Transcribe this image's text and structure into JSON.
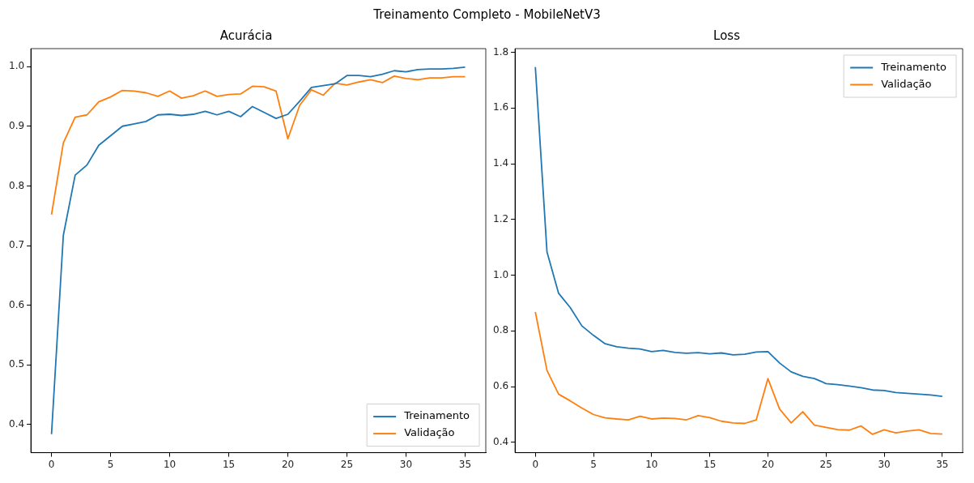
{
  "chart_data": [
    {
      "type": "line",
      "title": "Acurácia",
      "annotations": [
        "Treinamento Completo - MobileNetV3"
      ],
      "x": [
        0,
        1,
        2,
        3,
        4,
        5,
        6,
        7,
        8,
        9,
        10,
        11,
        12,
        13,
        14,
        15,
        16,
        17,
        18,
        19,
        20,
        21,
        22,
        23,
        24,
        25,
        26,
        27,
        28,
        29,
        30,
        31,
        32,
        33,
        34,
        35
      ],
      "xlim": [
        -1.75,
        36.75
      ],
      "xticks": [
        0,
        5,
        10,
        15,
        20,
        25,
        30,
        35
      ],
      "ylim": [
        0.353,
        1.03
      ],
      "yticks": [
        {
          "value": 0.4,
          "label": "0.4"
        },
        {
          "value": 0.5,
          "label": "0.5"
        },
        {
          "value": 0.6,
          "label": "0.6"
        },
        {
          "value": 0.7,
          "label": "0.7"
        },
        {
          "value": 0.8,
          "label": "0.8"
        },
        {
          "value": 0.9,
          "label": "0.9"
        },
        {
          "value": 1.0,
          "label": "1.0"
        }
      ],
      "grid": false,
      "legend": "bottom right",
      "series": [
        {
          "name": "Treinamento",
          "color": "#1f77b4",
          "values": [
            0.384,
            0.717,
            0.818,
            0.835,
            0.868,
            0.884,
            0.9,
            0.904,
            0.908,
            0.919,
            0.92,
            0.918,
            0.92,
            0.925,
            0.919,
            0.925,
            0.916,
            0.933,
            0.923,
            0.913,
            0.92,
            0.942,
            0.965,
            0.968,
            0.971,
            0.985,
            0.985,
            0.983,
            0.987,
            0.993,
            0.991,
            0.995,
            0.996,
            0.996,
            0.997,
            0.999
          ]
        },
        {
          "name": "Validação",
          "color": "#ff7f0e",
          "values": [
            0.752,
            0.872,
            0.915,
            0.919,
            0.941,
            0.949,
            0.96,
            0.959,
            0.956,
            0.95,
            0.959,
            0.947,
            0.951,
            0.959,
            0.95,
            0.953,
            0.954,
            0.967,
            0.966,
            0.959,
            0.879,
            0.935,
            0.961,
            0.952,
            0.972,
            0.969,
            0.974,
            0.978,
            0.973,
            0.984,
            0.98,
            0.978,
            0.981,
            0.981,
            0.983,
            0.983
          ]
        }
      ]
    },
    {
      "type": "line",
      "title": "Loss",
      "x": [
        0,
        1,
        2,
        3,
        4,
        5,
        6,
        7,
        8,
        9,
        10,
        11,
        12,
        13,
        14,
        15,
        16,
        17,
        18,
        19,
        20,
        21,
        22,
        23,
        24,
        25,
        26,
        27,
        28,
        29,
        30,
        31,
        32,
        33,
        34,
        35
      ],
      "xlim": [
        -1.75,
        36.75
      ],
      "xticks": [
        0,
        5,
        10,
        15,
        20,
        25,
        30,
        35
      ],
      "ylim": [
        0.363,
        1.813
      ],
      "yticks": [
        {
          "value": 0.4,
          "label": "0.4"
        },
        {
          "value": 0.6,
          "label": "0.6"
        },
        {
          "value": 0.8,
          "label": "0.8"
        },
        {
          "value": 1.0,
          "label": "1.0"
        },
        {
          "value": 1.2,
          "label": "1.2"
        },
        {
          "value": 1.4,
          "label": "1.4"
        },
        {
          "value": 1.6,
          "label": "1.6"
        },
        {
          "value": 1.8,
          "label": "1.8"
        }
      ],
      "grid": false,
      "legend": "top right",
      "series": [
        {
          "name": "Treinamento",
          "color": "#1f77b4",
          "values": [
            1.747,
            1.084,
            0.935,
            0.884,
            0.818,
            0.784,
            0.754,
            0.743,
            0.738,
            0.735,
            0.726,
            0.73,
            0.723,
            0.72,
            0.722,
            0.718,
            0.721,
            0.714,
            0.716,
            0.724,
            0.726,
            0.685,
            0.653,
            0.637,
            0.629,
            0.611,
            0.607,
            0.602,
            0.596,
            0.588,
            0.586,
            0.579,
            0.576,
            0.573,
            0.57,
            0.565
          ]
        },
        {
          "name": "Validação",
          "color": "#ff7f0e",
          "values": [
            0.868,
            0.658,
            0.573,
            0.549,
            0.523,
            0.5,
            0.488,
            0.484,
            0.481,
            0.494,
            0.484,
            0.487,
            0.486,
            0.481,
            0.496,
            0.489,
            0.476,
            0.47,
            0.468,
            0.481,
            0.629,
            0.52,
            0.47,
            0.51,
            0.462,
            0.454,
            0.446,
            0.444,
            0.459,
            0.429,
            0.445,
            0.434,
            0.441,
            0.445,
            0.432,
            0.43
          ]
        }
      ]
    }
  ]
}
